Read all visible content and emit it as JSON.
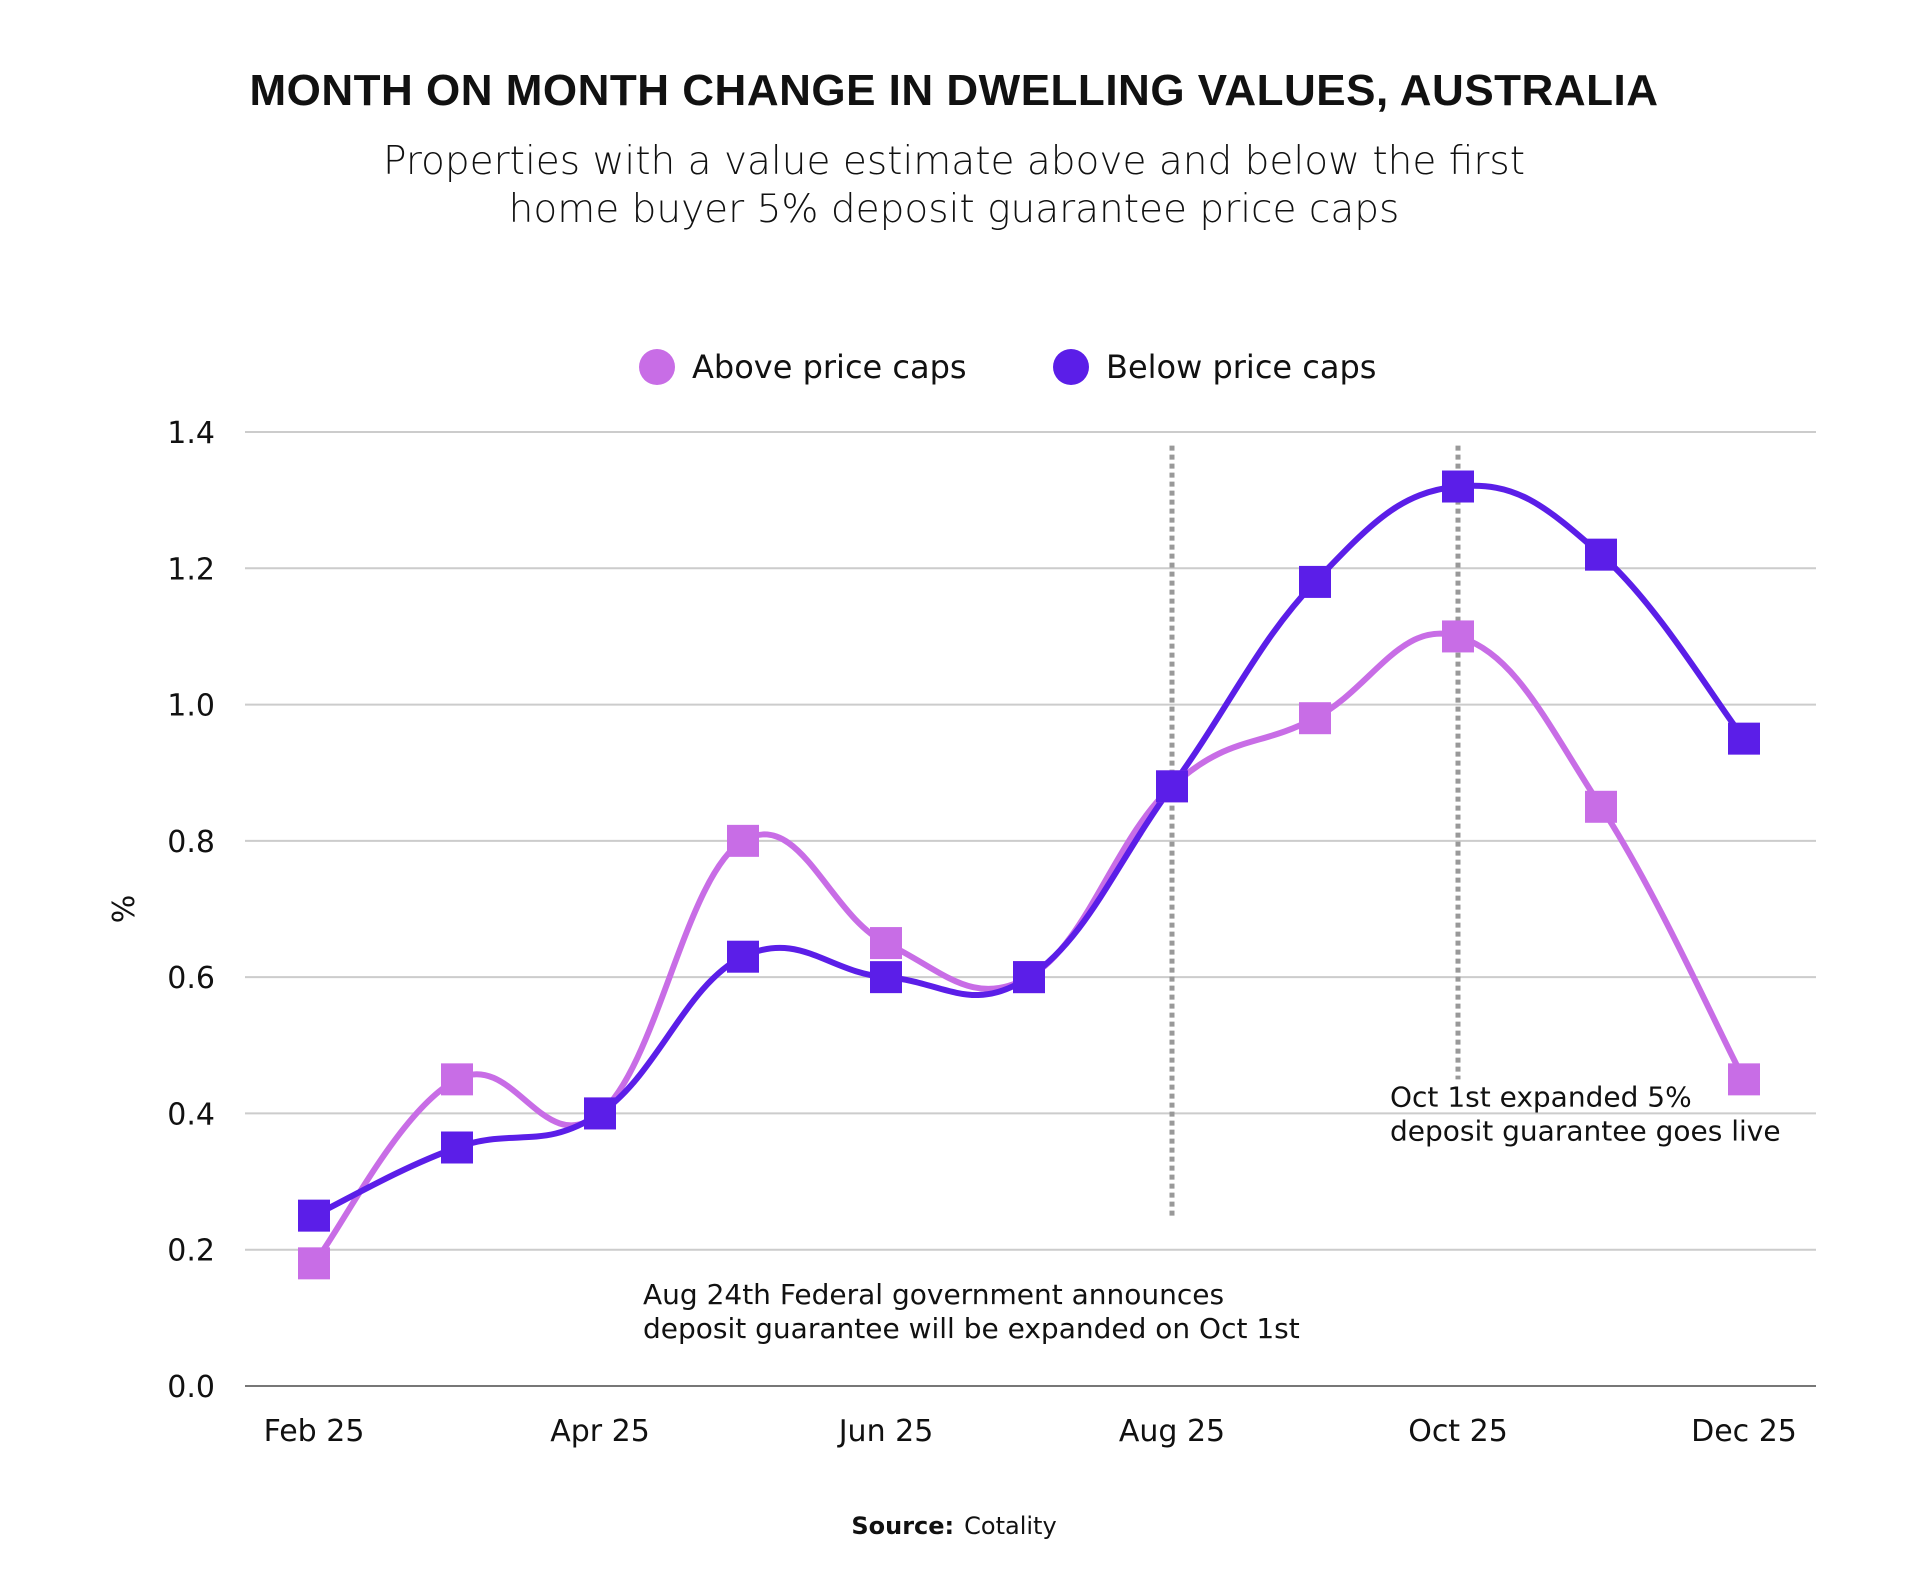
{
  "chart_data": {
    "type": "line",
    "title": "MONTH ON MONTH CHANGE IN DWELLING VALUES, AUSTRALIA",
    "subtitle": [
      "Properties with a value estimate above and below the first",
      "home buyer 5% deposit guarantee price caps"
    ],
    "xlabel": "",
    "ylabel": "%",
    "ylim": [
      0,
      1.4
    ],
    "yticks": [
      "0.0",
      "0.2",
      "0.4",
      "0.6",
      "0.8",
      "1.0",
      "1.2",
      "1.4"
    ],
    "categories": [
      "Feb 25",
      "Mar 25",
      "Apr 25",
      "May 25",
      "Jun 25",
      "Jul 25",
      "Aug 25",
      "Sep 25",
      "Oct 25",
      "Nov 25",
      "Dec 25"
    ],
    "xtick_labels": [
      "Feb 25",
      "Apr 25",
      "Jun 25",
      "Aug 25",
      "Oct 25",
      "Dec 25"
    ],
    "grid": "horizontal",
    "legend_position": "top-center",
    "series": [
      {
        "name": "Above price caps",
        "color": "#c86de6",
        "values": [
          0.18,
          0.45,
          0.4,
          0.8,
          0.65,
          0.6,
          0.88,
          0.98,
          1.1,
          0.85,
          0.45
        ]
      },
      {
        "name": "Below price caps",
        "color": "#5b1ee8",
        "values": [
          0.25,
          0.35,
          0.4,
          0.63,
          0.6,
          0.6,
          0.88,
          1.18,
          1.32,
          1.22,
          0.95
        ]
      }
    ],
    "reference_lines": [
      {
        "x": "Aug 25",
        "y_range": [
          0.25,
          1.38
        ]
      },
      {
        "x": "Oct 25",
        "y_range": [
          0.45,
          1.38
        ]
      }
    ],
    "annotations": [
      {
        "lines": [
          "Aug 24th Federal government announces",
          "deposit guarantee will be expanded on Oct 1st"
        ],
        "anchor": {
          "x": "Apr 25",
          "y": 0.12
        }
      },
      {
        "lines": [
          "Oct 1st expanded 5%",
          "deposit guarantee goes live"
        ],
        "anchor": {
          "x": "Oct 25",
          "y": 0.41
        }
      }
    ]
  },
  "source": {
    "label": "Source:",
    "value": "Cotality"
  }
}
